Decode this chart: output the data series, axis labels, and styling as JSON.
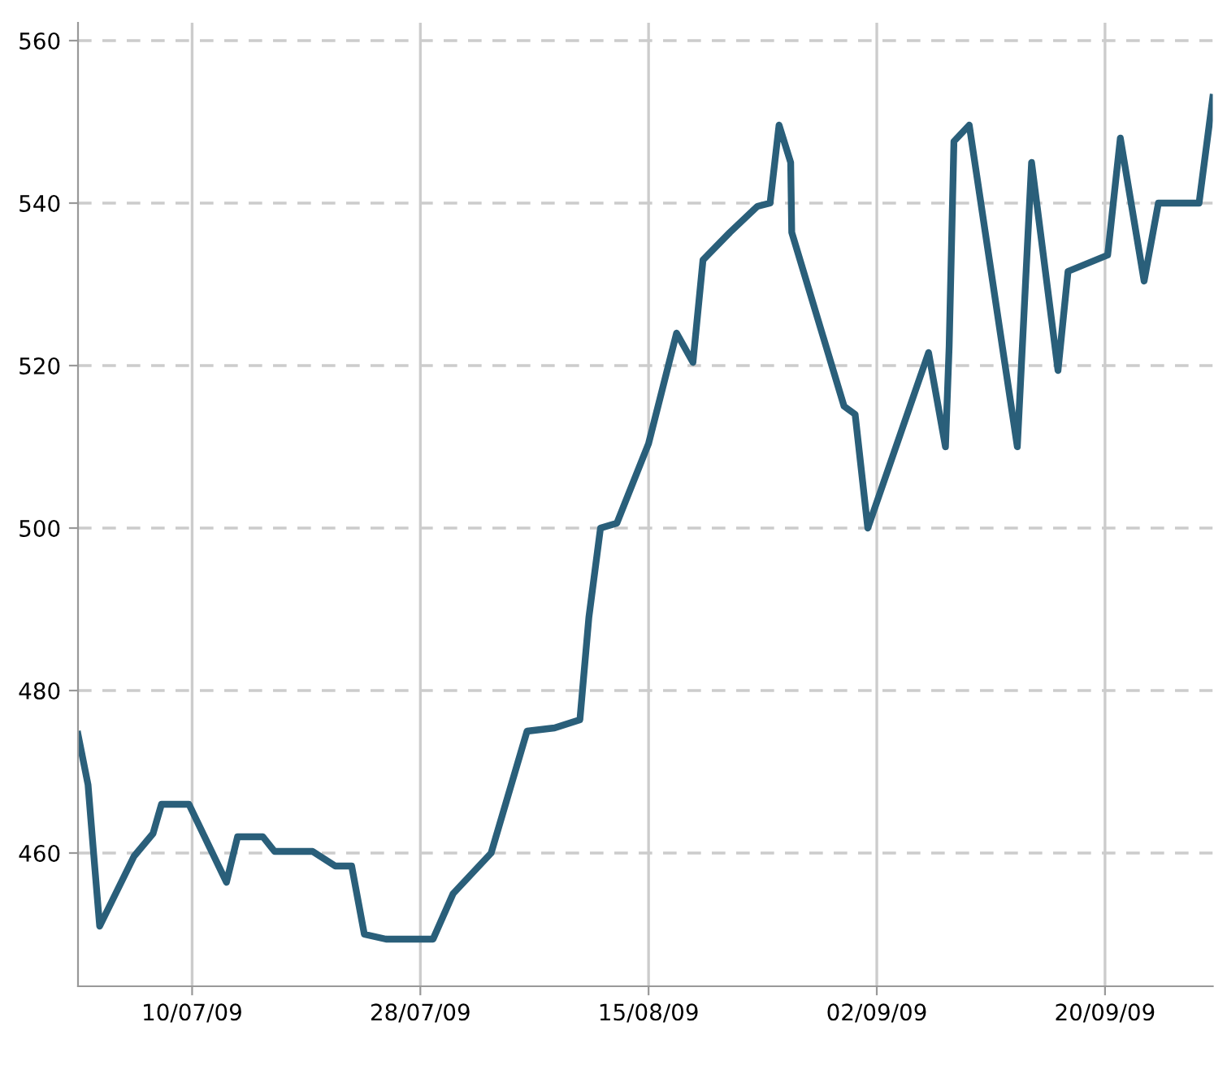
{
  "chart_data": {
    "type": "line",
    "x": [
      "2009-07-01T00:00",
      "2009-07-01T19:00",
      "2009-07-02T05:00",
      "2009-07-02T17:00",
      "2009-07-05T10:00",
      "2009-07-06T22:00",
      "2009-07-07T14:00",
      "2009-07-09T18:00",
      "2009-07-12T17:00",
      "2009-07-13T14:00",
      "2009-07-15T14:00",
      "2009-07-16T12:00",
      "2009-07-19T12:00",
      "2009-07-21T07:00",
      "2009-07-22T14:00",
      "2009-07-23T14:00",
      "2009-07-25T07:00",
      "2009-07-29T00:00",
      "2009-07-30T14:00",
      "2009-08-02T14:00",
      "2009-08-05T10:00",
      "2009-08-07T14:00",
      "2009-08-09T14:00",
      "2009-08-10T07:00",
      "2009-08-11T05:00",
      "2009-08-12T12:00",
      "2009-08-15T00:00",
      "2009-08-17T05:00",
      "2009-08-18T12:00",
      "2009-08-19T07:00",
      "2009-08-21T10:00",
      "2009-08-23T14:00",
      "2009-08-24T14:00",
      "2009-08-25T07:00",
      "2009-08-26T05:00",
      "2009-08-26T07:00",
      "2009-08-30T10:00",
      "2009-08-31T07:00",
      "2009-09-01T07:00",
      "2009-09-06T02:00",
      "2009-09-07T10:00",
      "2009-09-07T17:00",
      "2009-09-08T02:00",
      "2009-09-09T07:00",
      "2009-09-13T02:00",
      "2009-09-14T05:00",
      "2009-09-16T07:00",
      "2009-09-17T02:00",
      "2009-09-20T05:00",
      "2009-09-21T05:00",
      "2009-09-23T02:00",
      "2009-09-24T05:00",
      "2009-09-27T10:00",
      "2009-09-28T12:00"
    ],
    "series": [
      {
        "color": "#2a5f7a",
        "values": [
          474.6,
          468.4,
          460.4,
          451,
          459.6,
          462.4,
          466,
          466,
          456.4,
          462,
          462,
          460.2,
          460.2,
          458.4,
          458.4,
          450,
          449.4,
          449.4,
          455,
          460,
          475,
          475.4,
          476.4,
          489,
          500,
          500.6,
          510.4,
          524,
          520.4,
          533,
          536.4,
          539.6,
          540,
          549.6,
          545,
          536.4,
          515,
          514,
          500,
          521.6,
          510,
          522.4,
          547.6,
          549.6,
          510,
          545,
          519.4,
          531.6,
          533.6,
          548,
          530.4,
          540,
          540,
          553
        ]
      }
    ],
    "xlim": [
      "2009-07-01T00:00",
      "2009-09-28T12:00"
    ],
    "xticks": [
      {
        "value": "2009-07-10",
        "label": "10/07/09"
      },
      {
        "value": "2009-07-28",
        "label": "28/07/09"
      },
      {
        "value": "2009-08-15",
        "label": "15/08/09"
      },
      {
        "value": "2009-09-02",
        "label": "02/09/09"
      },
      {
        "value": "2009-09-20",
        "label": "20/09/09"
      }
    ],
    "ylim": [
      443.6,
      562.2
    ],
    "yticks": [
      460,
      480,
      500,
      520,
      540,
      560
    ],
    "grid": true,
    "legend": false,
    "marker": "none",
    "line_style": "solid"
  }
}
